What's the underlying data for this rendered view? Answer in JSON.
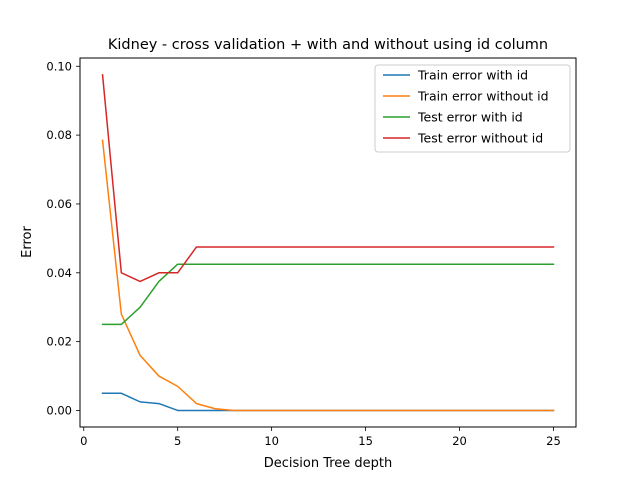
{
  "chart_data": {
    "type": "line",
    "title": "Kidney - cross validation + with and without using id column",
    "xlabel": "Decision Tree depth",
    "ylabel": "Error",
    "xlim": [
      -0.2,
      26.2
    ],
    "ylim": [
      -0.0048,
      0.1024
    ],
    "xticks": [
      0,
      5,
      10,
      15,
      20,
      25
    ],
    "xtick_labels": [
      "0",
      "5",
      "10",
      "15",
      "20",
      "25"
    ],
    "yticks": [
      0.0,
      0.02,
      0.04,
      0.06,
      0.08,
      0.1
    ],
    "ytick_labels": [
      "0.00",
      "0.02",
      "0.04",
      "0.06",
      "0.08",
      "0.10"
    ],
    "grid": false,
    "legend_position": "top-right",
    "x": [
      1,
      2,
      3,
      4,
      5,
      6,
      7,
      8,
      9,
      10,
      11,
      12,
      13,
      14,
      15,
      16,
      17,
      18,
      19,
      20,
      21,
      22,
      23,
      24,
      25
    ],
    "series": [
      {
        "name": "Train error with id",
        "color": "#1f77b4",
        "values": [
          0.005,
          0.005,
          0.0025,
          0.002,
          0.0,
          0.0,
          0.0,
          0.0,
          0.0,
          0.0,
          0.0,
          0.0,
          0.0,
          0.0,
          0.0,
          0.0,
          0.0,
          0.0,
          0.0,
          0.0,
          0.0,
          0.0,
          0.0,
          0.0,
          0.0
        ]
      },
      {
        "name": "Train error without id",
        "color": "#ff7f0e",
        "values": [
          0.0785,
          0.028,
          0.016,
          0.01,
          0.007,
          0.002,
          0.0005,
          0.0,
          0.0,
          0.0,
          0.0,
          0.0,
          0.0,
          0.0,
          0.0,
          0.0,
          0.0,
          0.0,
          0.0,
          0.0,
          0.0,
          0.0,
          0.0,
          0.0,
          0.0
        ]
      },
      {
        "name": "Test error with id",
        "color": "#2ca02c",
        "values": [
          0.025,
          0.025,
          0.03,
          0.0375,
          0.0425,
          0.0425,
          0.0425,
          0.0425,
          0.0425,
          0.0425,
          0.0425,
          0.0425,
          0.0425,
          0.0425,
          0.0425,
          0.0425,
          0.0425,
          0.0425,
          0.0425,
          0.0425,
          0.0425,
          0.0425,
          0.0425,
          0.0425,
          0.0425
        ]
      },
      {
        "name": "Test error without id",
        "color": "#d62728",
        "values": [
          0.0975,
          0.04,
          0.0375,
          0.04,
          0.04,
          0.0475,
          0.0475,
          0.0475,
          0.0475,
          0.0475,
          0.0475,
          0.0475,
          0.0475,
          0.0475,
          0.0475,
          0.0475,
          0.0475,
          0.0475,
          0.0475,
          0.0475,
          0.0475,
          0.0475,
          0.0475,
          0.0475,
          0.0475
        ]
      }
    ]
  }
}
